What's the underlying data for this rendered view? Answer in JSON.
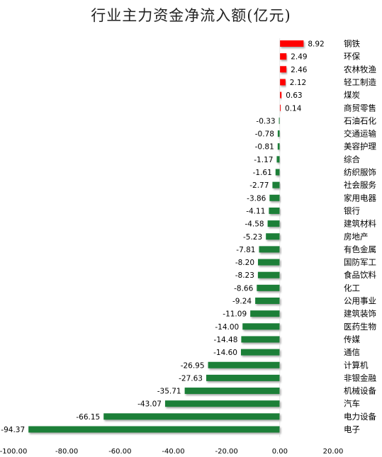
{
  "chart_data": {
    "type": "bar",
    "orientation": "horizontal",
    "title": "行业主力资金净流入额(亿元)",
    "xlabel": "",
    "ylabel": "",
    "xlim": [
      -100,
      20
    ],
    "xticks": [
      "-100.00",
      "-80.00",
      "-60.00",
      "-40.00",
      "-20.00",
      "0.00",
      "20.00"
    ],
    "grid": false,
    "legend": "none",
    "colors": {
      "positive": "#ff0000",
      "negative": "#1a7f37"
    },
    "categories": [
      "钢铁",
      "环保",
      "农林牧渔",
      "轻工制造",
      "煤炭",
      "商贸零售",
      "石油石化",
      "交通运输",
      "美容护理",
      "综合",
      "纺织服饰",
      "社会服务",
      "家用电器",
      "银行",
      "建筑材料",
      "房地产",
      "有色金属",
      "国防军工",
      "食品饮料",
      "化工",
      "公用事业",
      "建筑装饰",
      "医药生物",
      "传媒",
      "通信",
      "计算机",
      "非银金融",
      "机械设备",
      "汽车",
      "电力设备",
      "电子"
    ],
    "values": [
      8.92,
      2.49,
      2.46,
      2.12,
      0.63,
      0.14,
      -0.33,
      -0.78,
      -0.81,
      -1.17,
      -1.61,
      -2.77,
      -3.86,
      -4.11,
      -4.58,
      -5.23,
      -7.81,
      -8.2,
      -8.23,
      -8.66,
      -9.24,
      -11.09,
      -14.0,
      -14.48,
      -14.6,
      -26.95,
      -27.63,
      -35.71,
      -43.07,
      -66.15,
      -94.37
    ],
    "value_labels": [
      "8.92",
      "2.49",
      "2.46",
      "2.12",
      "0.63",
      "0.14",
      "-0.33",
      "-0.78",
      "-0.81",
      "-1.17",
      "-1.61",
      "-2.77",
      "-3.86",
      "-4.11",
      "-4.58",
      "-5.23",
      "-7.81",
      "-8.20",
      "-8.23",
      "-8.66",
      "-9.24",
      "-11.09",
      "-14.00",
      "-14.48",
      "-14.60",
      "-26.95",
      "-27.63",
      "-35.71",
      "-43.07",
      "-66.15",
      "-94.37"
    ]
  }
}
